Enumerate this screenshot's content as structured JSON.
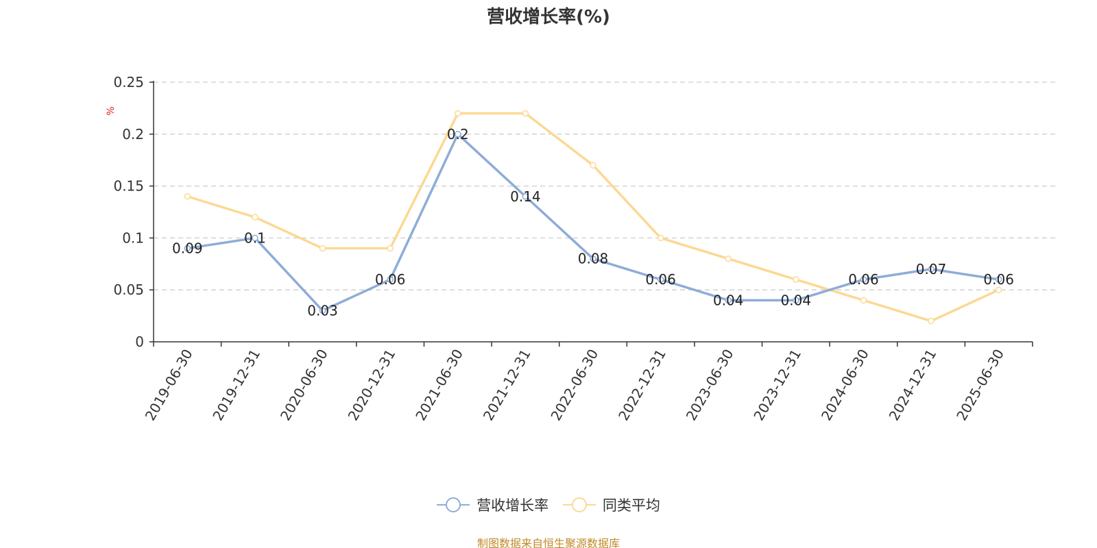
{
  "title": "营收增长率(%)",
  "source_note": "制图数据来自恒生聚源数据库",
  "chart_data": {
    "type": "line",
    "title": "营收增长率(%)",
    "xlabel": "",
    "ylabel": "%",
    "categories": [
      "2019-06-30",
      "2019-12-31",
      "2020-06-30",
      "2020-12-31",
      "2021-06-30",
      "2021-12-31",
      "2022-06-30",
      "2022-12-31",
      "2023-06-30",
      "2023-12-31",
      "2024-06-30",
      "2024-12-31",
      "2025-06-30"
    ],
    "ylim": [
      0,
      0.25
    ],
    "yticks": [
      0,
      0.05,
      0.1,
      0.15,
      0.2,
      0.25
    ],
    "ytick_labels": [
      "0",
      "0.05",
      "0.1",
      "0.15",
      "0.2",
      "0.25"
    ],
    "grid": true,
    "legend_position": "bottom-center",
    "series": [
      {
        "name": "营收增长率",
        "color": "#8eacd8",
        "values": [
          0.09,
          0.1,
          0.03,
          0.06,
          0.2,
          0.14,
          0.08,
          0.06,
          0.04,
          0.04,
          0.06,
          0.07,
          0.06
        ],
        "labels": [
          "0.09",
          "0.1",
          "0.03",
          "0.06",
          "0.2",
          "0.14",
          "0.08",
          "0.06",
          "0.04",
          "0.04",
          "0.06",
          "0.07",
          "0.06"
        ]
      },
      {
        "name": "同类平均",
        "color": "#fbd993",
        "values": [
          0.14,
          0.12,
          0.09,
          0.09,
          0.22,
          0.22,
          0.17,
          0.1,
          0.08,
          0.06,
          0.04,
          0.02,
          0.05
        ]
      }
    ]
  }
}
